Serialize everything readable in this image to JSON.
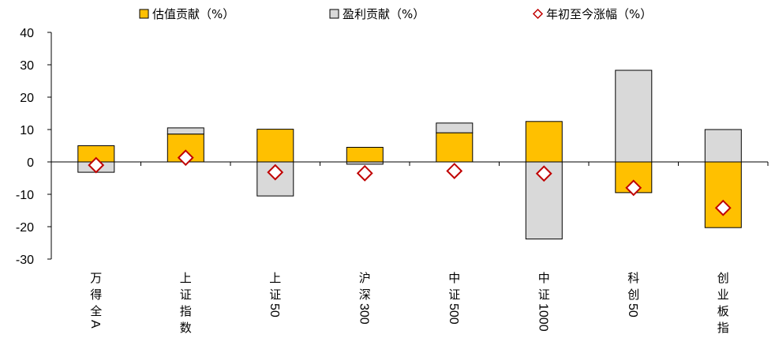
{
  "chart_data": {
    "type": "bar",
    "categories": [
      "万得全A",
      "上证指数",
      "上证50",
      "沪深300",
      "中证500",
      "中证1000",
      "科创50",
      "创业板指"
    ],
    "series": [
      {
        "name": "估值贡献（%）",
        "kind": "bar",
        "color": "#FFC000",
        "values": [
          5.0,
          8.6,
          10.1,
          4.5,
          9.0,
          12.5,
          -9.5,
          -20.3
        ]
      },
      {
        "name": "盈利贡献（%）",
        "kind": "bar",
        "color": "#D9D9D9",
        "values": [
          -3.2,
          1.9,
          -10.5,
          -0.7,
          3.0,
          -23.8,
          28.3,
          10.0
        ]
      },
      {
        "name": "年初至今涨幅（%）",
        "kind": "marker",
        "color": "#C00000",
        "values": [
          -1.0,
          1.3,
          -3.2,
          -3.5,
          -2.8,
          -3.6,
          -8.0,
          -14.2
        ]
      }
    ],
    "ylim": [
      -30,
      40
    ],
    "yticks": [
      "40",
      "30",
      "20",
      "10",
      "0",
      "-10",
      "-20",
      "-30"
    ],
    "legend": "top",
    "grid": false,
    "title": "",
    "xlabel": "",
    "ylabel": ""
  }
}
